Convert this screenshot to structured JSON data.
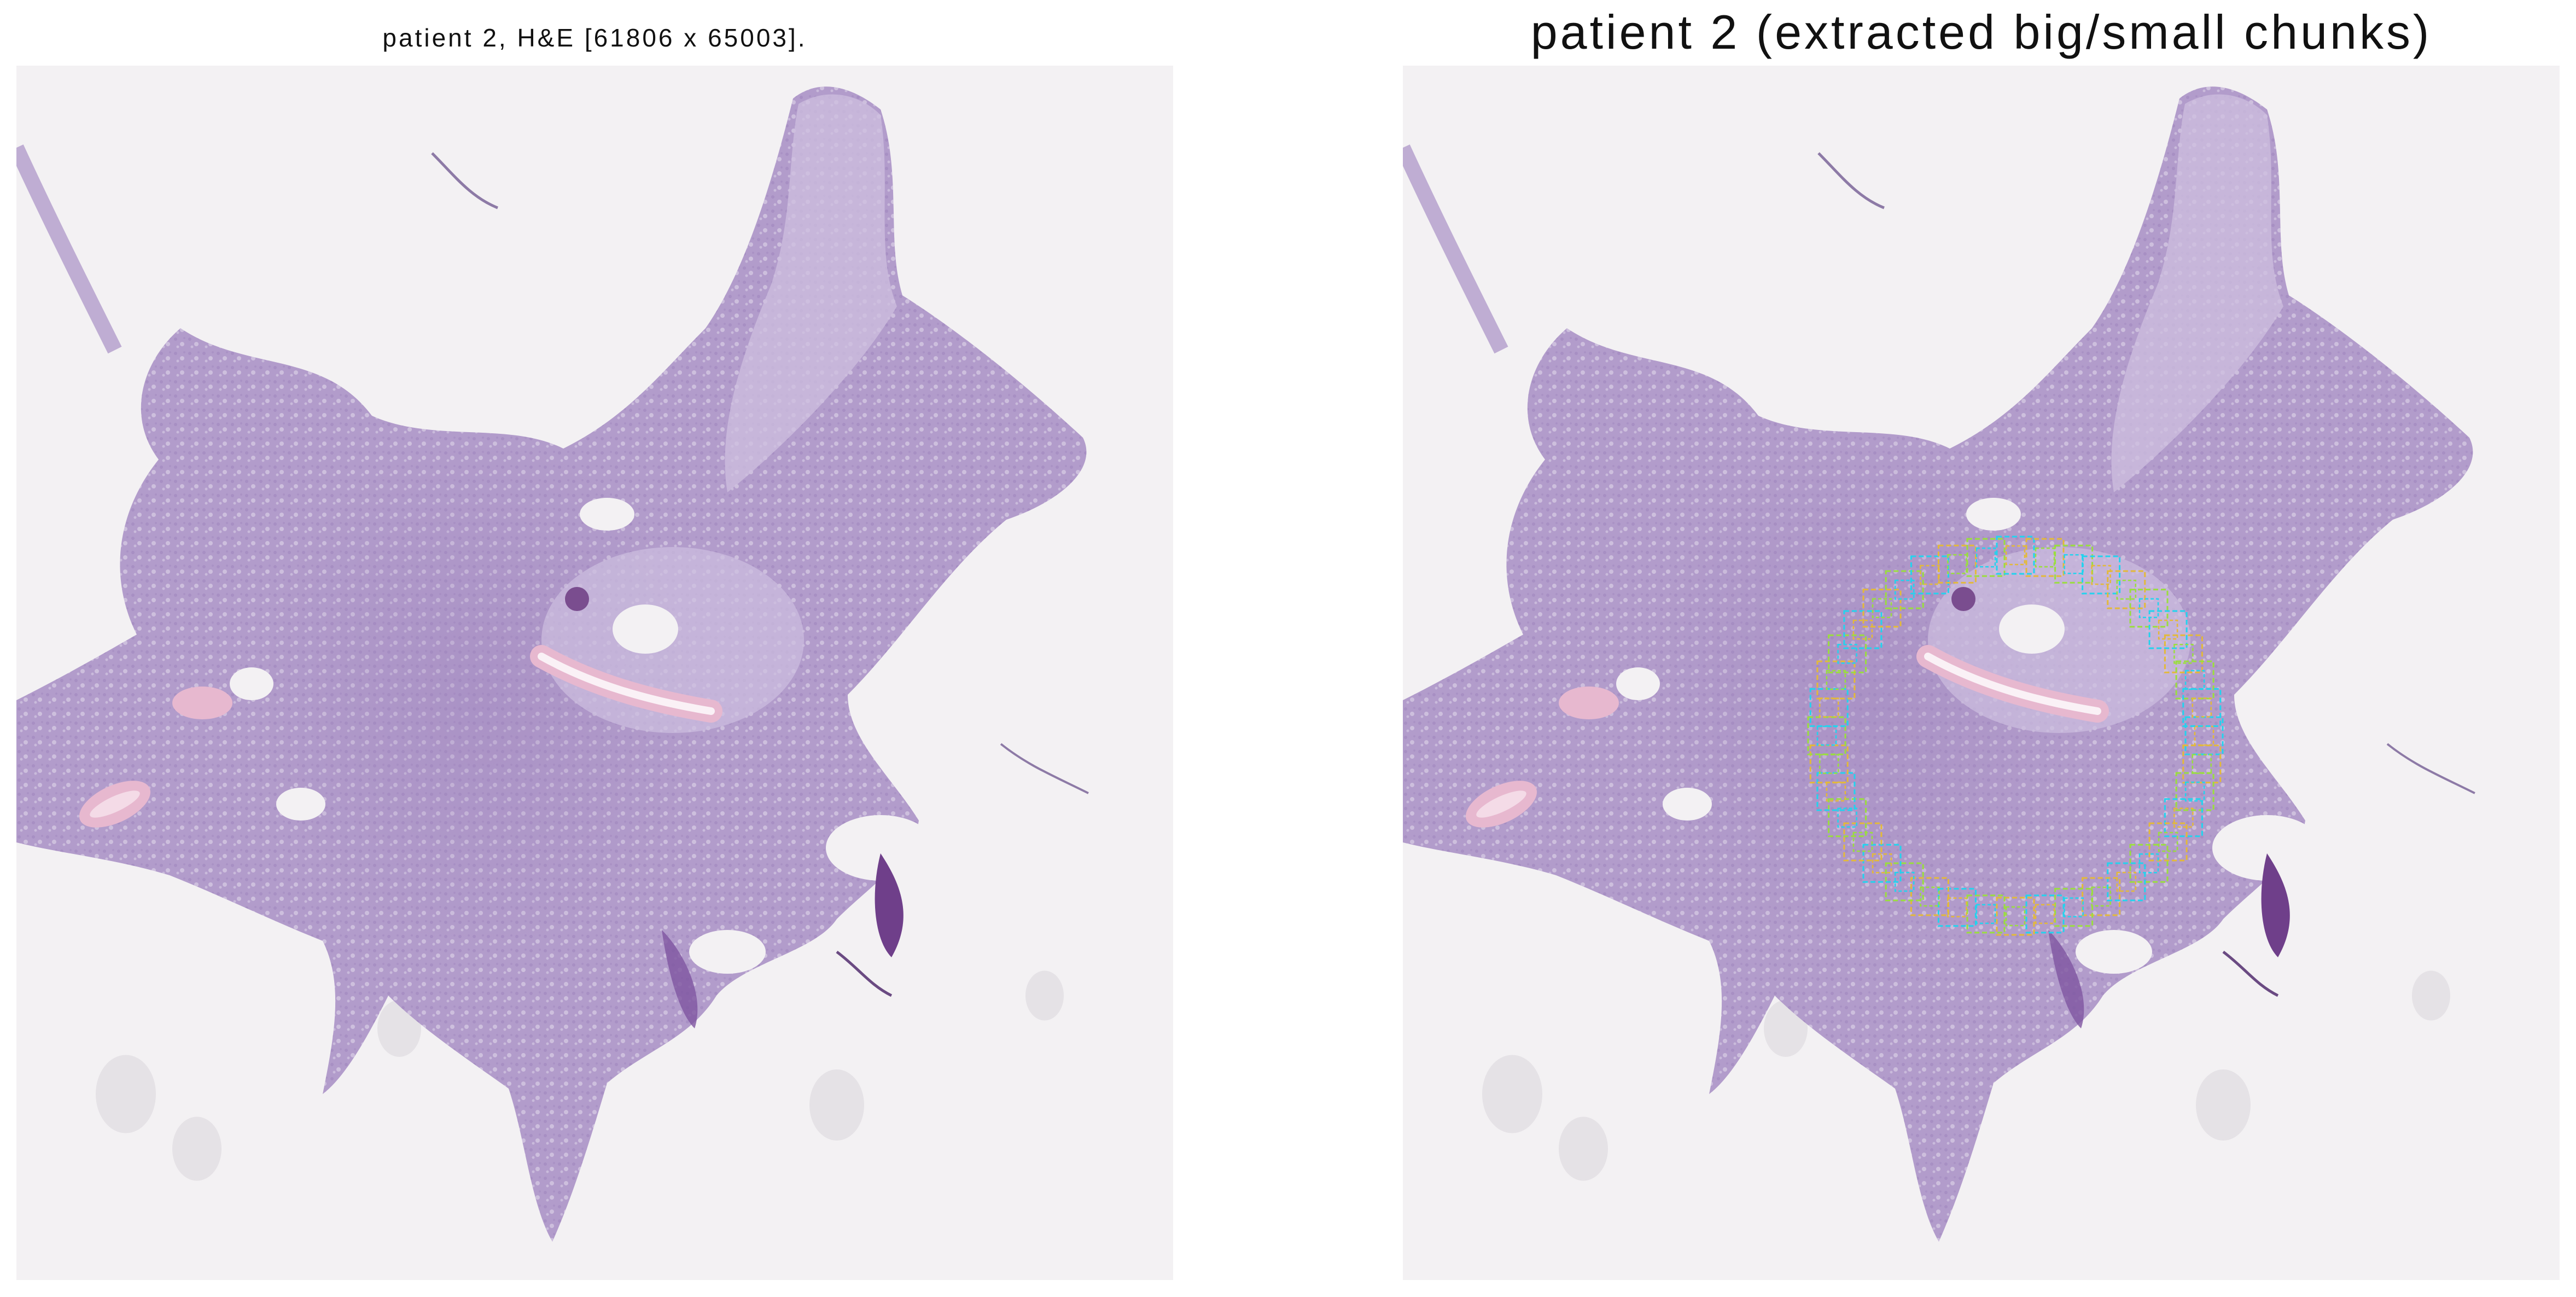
{
  "figure": {
    "left_title": "patient 2, H&E [61806 x 65003].",
    "right_title": "patient 2 (extracted big/small chunks)"
  },
  "colors": {
    "background_slide": "#f3f1f3",
    "tissue_dark": "#9a7fba",
    "tissue_mid": "#b29ccb",
    "tissue_light": "#cdbfdf",
    "vessel_pink": "#e7b8cf",
    "chunk_cyan": "#22d3ee",
    "chunk_yellow": "#e3b93a",
    "chunk_green": "#9ade3e"
  },
  "icons": {
    "left_panel": "slide-image-icon",
    "right_panel": "slide-image-with-chunks-icon"
  }
}
